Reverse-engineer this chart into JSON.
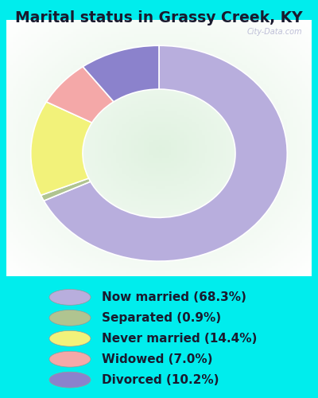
{
  "title": "Marital status in Grassy Creek, KY",
  "slices": [
    68.3,
    0.9,
    14.4,
    7.0,
    10.2
  ],
  "labels": [
    "Now married (68.3%)",
    "Separated (0.9%)",
    "Never married (14.4%)",
    "Widowed (7.0%)",
    "Divorced (10.2%)"
  ],
  "colors": [
    "#b8aedd",
    "#b0c490",
    "#f2f27a",
    "#f4a8a8",
    "#8b82cc"
  ],
  "startangle": 90,
  "bg_cyan": "#00eded",
  "bg_chart_color1": "#e8f5e8",
  "bg_chart_color2": "#f8fdf8",
  "title_color": "#1a1a2e",
  "title_fontsize": 13.5,
  "watermark": "City-Data.com",
  "legend_fontsize": 11,
  "legend_text_color": "#1a1a2e"
}
